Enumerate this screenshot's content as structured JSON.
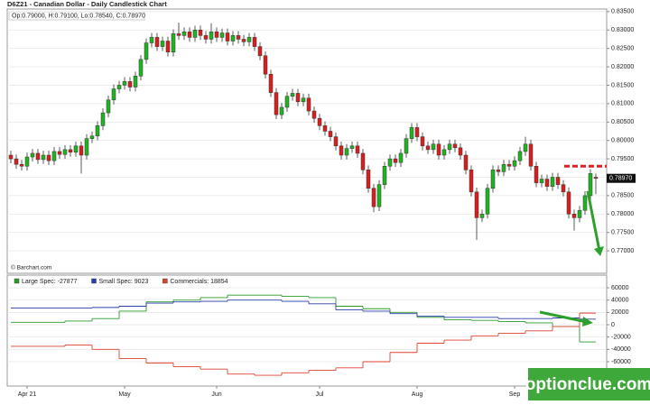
{
  "chart_data": [
    {
      "type": "candlestick",
      "title": "D6Z21 - Canadian Dollar - Daily Candlestick Chart",
      "ohlc_label": "Op:0.79000, H:0.79100, Lo:0.78540, C:0.78970",
      "source": "© Barchart.com",
      "up_color": "#22b322",
      "down_color": "#d42020",
      "open": [
        0.796,
        0.795,
        0.7935,
        0.793,
        0.7955,
        0.7965,
        0.7948,
        0.796,
        0.7945,
        0.797,
        0.7962,
        0.7975,
        0.7968,
        0.7985,
        0.796,
        0.8005,
        0.8012,
        0.804,
        0.8075,
        0.811,
        0.814,
        0.815,
        0.816,
        0.8145,
        0.8175,
        0.822,
        0.8265,
        0.828,
        0.8255,
        0.827,
        0.824,
        0.829,
        0.8285,
        0.8295,
        0.828,
        0.83,
        0.8285,
        0.8275,
        0.8295,
        0.828,
        0.8292,
        0.827,
        0.8285,
        0.8275,
        0.8268,
        0.828,
        0.8255,
        0.823,
        0.818,
        0.813,
        0.807,
        0.809,
        0.812,
        0.8128,
        0.8105,
        0.8115,
        0.808,
        0.806,
        0.804,
        0.8025,
        0.801,
        0.7985,
        0.796,
        0.7978,
        0.7985,
        0.7965,
        0.792,
        0.787,
        0.782,
        0.788,
        0.793,
        0.795,
        0.794,
        0.7965,
        0.8005,
        0.8035,
        0.801,
        0.7985,
        0.7975,
        0.799,
        0.796,
        0.7975,
        0.799,
        0.798,
        0.796,
        0.792,
        0.786,
        0.779,
        0.78,
        0.787,
        0.792,
        0.7915,
        0.7935,
        0.793,
        0.7945,
        0.797,
        0.799,
        0.793,
        0.7885,
        0.7895,
        0.7875,
        0.79,
        0.788,
        0.786,
        0.78,
        0.779,
        0.781,
        0.785,
        0.79
      ],
      "high": [
        0.7972,
        0.7962,
        0.7947,
        0.7967,
        0.7977,
        0.7977,
        0.7972,
        0.7972,
        0.7982,
        0.7982,
        0.7987,
        0.7987,
        0.7997,
        0.7997,
        0.8017,
        0.8024,
        0.8052,
        0.8087,
        0.8122,
        0.8152,
        0.8162,
        0.8172,
        0.8172,
        0.8187,
        0.8232,
        0.8277,
        0.8292,
        0.8292,
        0.8282,
        0.8282,
        0.8302,
        0.832,
        0.8307,
        0.8307,
        0.8312,
        0.8312,
        0.8297,
        0.8318,
        0.8307,
        0.8304,
        0.8304,
        0.8297,
        0.8297,
        0.8287,
        0.8292,
        0.8292,
        0.8267,
        0.8242,
        0.8192,
        0.8142,
        0.8102,
        0.8132,
        0.814,
        0.814,
        0.8127,
        0.8127,
        0.8092,
        0.8072,
        0.8052,
        0.8037,
        0.8022,
        0.7997,
        0.799,
        0.7997,
        0.7997,
        0.7977,
        0.7932,
        0.7882,
        0.7892,
        0.7942,
        0.7962,
        0.7962,
        0.7977,
        0.8017,
        0.8047,
        0.8047,
        0.8022,
        0.7997,
        0.8002,
        0.8002,
        0.7987,
        0.8002,
        0.8002,
        0.7992,
        0.7972,
        0.7932,
        0.7872,
        0.7812,
        0.7882,
        0.7932,
        0.7932,
        0.7947,
        0.7947,
        0.7957,
        0.7982,
        0.801,
        0.8002,
        0.7942,
        0.7907,
        0.7907,
        0.7912,
        0.7912,
        0.7892,
        0.7872,
        0.7812,
        0.7822,
        0.7862,
        0.7922,
        0.791
      ],
      "low": [
        0.7938,
        0.7923,
        0.7918,
        0.7918,
        0.7943,
        0.7936,
        0.7936,
        0.7933,
        0.7933,
        0.795,
        0.795,
        0.7956,
        0.7956,
        0.791,
        0.7948,
        0.7993,
        0.8,
        0.8028,
        0.8063,
        0.8098,
        0.8128,
        0.8138,
        0.8133,
        0.8133,
        0.8163,
        0.8208,
        0.8253,
        0.8243,
        0.8243,
        0.8228,
        0.8228,
        0.8273,
        0.8273,
        0.8268,
        0.8268,
        0.8273,
        0.8263,
        0.8263,
        0.8268,
        0.8268,
        0.8258,
        0.8258,
        0.8263,
        0.8256,
        0.8256,
        0.8243,
        0.8218,
        0.8168,
        0.8118,
        0.8058,
        0.8058,
        0.8078,
        0.8108,
        0.8093,
        0.8093,
        0.8068,
        0.8048,
        0.8028,
        0.8013,
        0.7998,
        0.7973,
        0.7948,
        0.7948,
        0.7966,
        0.7953,
        0.7908,
        0.7858,
        0.7805,
        0.7808,
        0.7868,
        0.7918,
        0.7928,
        0.7928,
        0.7953,
        0.7993,
        0.7998,
        0.7973,
        0.7963,
        0.7963,
        0.7948,
        0.7948,
        0.7963,
        0.7968,
        0.7948,
        0.7908,
        0.7848,
        0.773,
        0.7778,
        0.7788,
        0.7858,
        0.7903,
        0.7903,
        0.7918,
        0.7918,
        0.7933,
        0.7958,
        0.7918,
        0.7873,
        0.7873,
        0.7863,
        0.7863,
        0.7868,
        0.7848,
        0.7788,
        0.7755,
        0.7778,
        0.7798,
        0.7838,
        0.7854
      ],
      "close": [
        0.795,
        0.7935,
        0.793,
        0.7955,
        0.7965,
        0.7948,
        0.796,
        0.7945,
        0.797,
        0.7962,
        0.7975,
        0.7968,
        0.7985,
        0.796,
        0.8005,
        0.8012,
        0.804,
        0.8075,
        0.811,
        0.814,
        0.815,
        0.816,
        0.8145,
        0.8175,
        0.822,
        0.8265,
        0.828,
        0.8255,
        0.827,
        0.824,
        0.829,
        0.8285,
        0.8295,
        0.828,
        0.83,
        0.8285,
        0.8275,
        0.8295,
        0.828,
        0.8292,
        0.827,
        0.8285,
        0.8275,
        0.8268,
        0.828,
        0.8255,
        0.823,
        0.818,
        0.813,
        0.807,
        0.809,
        0.812,
        0.8128,
        0.8105,
        0.8115,
        0.808,
        0.806,
        0.804,
        0.8025,
        0.801,
        0.7985,
        0.796,
        0.7978,
        0.7985,
        0.7965,
        0.792,
        0.787,
        0.782,
        0.788,
        0.793,
        0.795,
        0.794,
        0.7965,
        0.8005,
        0.8035,
        0.801,
        0.7985,
        0.7975,
        0.799,
        0.796,
        0.7975,
        0.799,
        0.798,
        0.796,
        0.792,
        0.786,
        0.779,
        0.78,
        0.787,
        0.792,
        0.7915,
        0.7935,
        0.793,
        0.7945,
        0.797,
        0.799,
        0.793,
        0.7885,
        0.7895,
        0.7875,
        0.79,
        0.788,
        0.786,
        0.78,
        0.779,
        0.781,
        0.785,
        0.791,
        0.7897
      ],
      "last_label": {
        "value": 0.7897,
        "label": "0.78970"
      },
      "dashed_level": 0.793,
      "dashed_color": "#e02020",
      "xlim": [
        -0.667,
        110
      ],
      "xticks": [
        {
          "value": 3,
          "label": "Apr 21"
        },
        {
          "value": 21,
          "label": "May"
        },
        {
          "value": 38,
          "label": "Jun"
        },
        {
          "value": 57,
          "label": "Jul"
        },
        {
          "value": 75,
          "label": "Aug"
        },
        {
          "value": 93,
          "label": "Sep"
        }
      ],
      "ylim": [
        0.7639,
        0.8357
      ],
      "yticks": [
        {
          "value": 0.77,
          "label": "0.77000"
        },
        {
          "value": 0.775,
          "label": "0.77500"
        },
        {
          "value": 0.78,
          "label": "0.78000"
        },
        {
          "value": 0.785,
          "label": "0.78500"
        },
        {
          "value": 0.79,
          "label": "0.79000"
        },
        {
          "value": 0.795,
          "label": "0.79500"
        },
        {
          "value": 0.8,
          "label": "0.80000"
        },
        {
          "value": 0.805,
          "label": "0.80500"
        },
        {
          "value": 0.81,
          "label": "0.81000"
        },
        {
          "value": 0.815,
          "label": "0.81500"
        },
        {
          "value": 0.82,
          "label": "0.82000"
        },
        {
          "value": 0.825,
          "label": "0.82500"
        },
        {
          "value": 0.83,
          "label": "0.83000"
        },
        {
          "value": 0.835,
          "label": "0.83500"
        }
      ],
      "grid": true
    },
    {
      "type": "step",
      "x": [
        0,
        5,
        10,
        15,
        20,
        25,
        30,
        35,
        40,
        45,
        50,
        55,
        60,
        65,
        70,
        75,
        80,
        85,
        90,
        95,
        100,
        105
      ],
      "series": [
        {
          "name": "Large Spec: -27877",
          "color": "#2a9a2a",
          "values": [
            4000,
            4000,
            6000,
            10000,
            22000,
            37000,
            40000,
            44000,
            48000,
            48000,
            46000,
            44000,
            30000,
            26000,
            20000,
            12000,
            8000,
            7000,
            5000,
            3000,
            -3000,
            -27877
          ]
        },
        {
          "name": "Small Spec: 9023",
          "color": "#2a3ea8",
          "values": [
            27000,
            27000,
            27000,
            28000,
            30000,
            35000,
            37000,
            38000,
            40000,
            40000,
            38000,
            34000,
            24000,
            22000,
            18000,
            14000,
            12000,
            12000,
            10000,
            10000,
            11000,
            9023
          ]
        },
        {
          "name": "Commercials: 18854",
          "color": "#e04030",
          "values": [
            -35000,
            -35000,
            -33000,
            -40000,
            -55000,
            -62000,
            -68000,
            -72000,
            -80000,
            -82000,
            -78000,
            -74000,
            -70000,
            -60000,
            -45000,
            -30000,
            -25000,
            -18000,
            -14000,
            -10000,
            -3000,
            18854
          ]
        }
      ],
      "xlim": [
        -0.667,
        110
      ],
      "ylim": [
        -99500,
        80500
      ],
      "yticks": [
        -60000,
        -40000,
        -20000,
        0,
        20000,
        40000,
        60000
      ],
      "grid": true
    }
  ],
  "watermark": "optionclue.com"
}
